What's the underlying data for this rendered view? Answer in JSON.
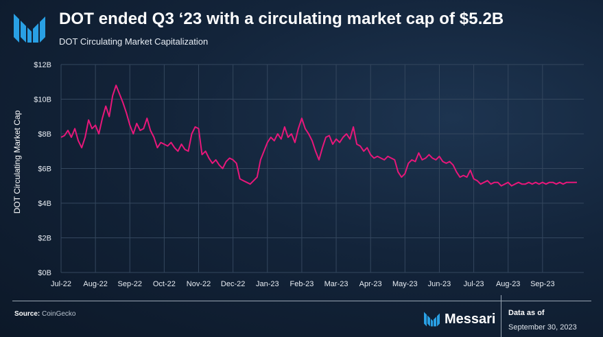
{
  "header": {
    "title": "DOT ended Q3 ‘23 with a circulating market cap of $5.2B",
    "subtitle": "DOT Circulating Market Capitalization"
  },
  "footer": {
    "source_label": "Source:",
    "source_value": "CoinGecko",
    "brand_name": "Messari",
    "data_as_of_label": "Data as of",
    "data_as_of_date": "September 30, 2023"
  },
  "colors": {
    "line": "#e8177a",
    "grid": "#34475e",
    "tick_text": "#e8edf3",
    "logo": "#29a0e4"
  },
  "chart_data": {
    "type": "line",
    "title": "DOT Circulating Market Capitalization",
    "xlabel": "",
    "ylabel": "DOT Circulating Market Cap",
    "y_tick_labels": [
      "$0B",
      "$2B",
      "$4B",
      "$6B",
      "$8B",
      "$10B",
      "$12B"
    ],
    "x_tick_labels": [
      "Jul-22",
      "Aug-22",
      "Sep-22",
      "Oct-22",
      "Nov-22",
      "Dec-22",
      "Jan-23",
      "Feb-23",
      "Mar-23",
      "Apr-23",
      "May-23",
      "Jun-23",
      "Jul-23",
      "Aug-23",
      "Sep-23"
    ],
    "ylim": [
      0,
      12
    ],
    "xlim": [
      0,
      15.2
    ],
    "grid": true,
    "series": [
      {
        "name": "DOT Circulating Market Cap ($B)",
        "x": [
          0.0,
          0.1,
          0.2,
          0.3,
          0.4,
          0.5,
          0.6,
          0.7,
          0.8,
          0.9,
          1.0,
          1.1,
          1.2,
          1.3,
          1.4,
          1.5,
          1.6,
          1.7,
          1.8,
          1.9,
          2.0,
          2.1,
          2.2,
          2.3,
          2.4,
          2.5,
          2.6,
          2.7,
          2.8,
          2.9,
          3.0,
          3.1,
          3.2,
          3.3,
          3.4,
          3.5,
          3.6,
          3.7,
          3.8,
          3.9,
          4.0,
          4.1,
          4.2,
          4.3,
          4.4,
          4.5,
          4.6,
          4.7,
          4.8,
          4.9,
          5.0,
          5.1,
          5.2,
          5.3,
          5.4,
          5.5,
          5.6,
          5.7,
          5.8,
          5.9,
          6.0,
          6.1,
          6.2,
          6.3,
          6.4,
          6.5,
          6.6,
          6.7,
          6.8,
          6.9,
          7.0,
          7.1,
          7.2,
          7.3,
          7.4,
          7.5,
          7.6,
          7.7,
          7.8,
          7.9,
          8.0,
          8.1,
          8.2,
          8.3,
          8.4,
          8.5,
          8.6,
          8.7,
          8.8,
          8.9,
          9.0,
          9.1,
          9.2,
          9.3,
          9.4,
          9.5,
          9.6,
          9.7,
          9.8,
          9.9,
          10.0,
          10.1,
          10.2,
          10.3,
          10.4,
          10.5,
          10.6,
          10.7,
          10.8,
          10.9,
          11.0,
          11.1,
          11.2,
          11.3,
          11.4,
          11.5,
          11.6,
          11.7,
          11.8,
          11.9,
          12.0,
          12.1,
          12.2,
          12.3,
          12.4,
          12.5,
          12.6,
          12.7,
          12.8,
          12.9,
          13.0,
          13.1,
          13.2,
          13.3,
          13.4,
          13.5,
          13.6,
          13.7,
          13.8,
          13.9,
          14.0,
          14.1,
          14.2,
          14.3,
          14.4,
          14.5,
          14.6,
          14.7,
          14.8,
          14.9,
          15.0
        ],
        "values": [
          7.8,
          7.9,
          8.2,
          7.8,
          8.3,
          7.6,
          7.2,
          7.8,
          8.8,
          8.3,
          8.5,
          8.0,
          8.9,
          9.6,
          9.0,
          10.2,
          10.8,
          10.3,
          9.8,
          9.2,
          8.5,
          8.0,
          8.6,
          8.2,
          8.3,
          8.9,
          8.2,
          7.8,
          7.2,
          7.5,
          7.4,
          7.3,
          7.5,
          7.2,
          7.0,
          7.4,
          7.1,
          7.0,
          8.0,
          8.4,
          8.3,
          6.8,
          7.0,
          6.6,
          6.3,
          6.5,
          6.2,
          6.0,
          6.4,
          6.6,
          6.5,
          6.3,
          5.4,
          5.3,
          5.2,
          5.1,
          5.3,
          5.5,
          6.5,
          7.0,
          7.5,
          7.8,
          7.6,
          8.0,
          7.7,
          8.4,
          7.8,
          8.0,
          7.5,
          8.3,
          8.9,
          8.3,
          8.0,
          7.6,
          7.0,
          6.5,
          7.2,
          7.8,
          7.9,
          7.4,
          7.7,
          7.5,
          7.8,
          8.0,
          7.7,
          8.4,
          7.4,
          7.3,
          7.0,
          7.2,
          6.8,
          6.6,
          6.7,
          6.6,
          6.5,
          6.7,
          6.6,
          6.5,
          5.8,
          5.5,
          5.7,
          6.3,
          6.5,
          6.4,
          6.9,
          6.5,
          6.6,
          6.8,
          6.6,
          6.5,
          6.7,
          6.4,
          6.3,
          6.4,
          6.2,
          5.8,
          5.5,
          5.6,
          5.5,
          5.9,
          5.4,
          5.3,
          5.1,
          5.2,
          5.3,
          5.1,
          5.2,
          5.2,
          5.0,
          5.1,
          5.2,
          5.0,
          5.1,
          5.2,
          5.1,
          5.1,
          5.2,
          5.1,
          5.2,
          5.1,
          5.2,
          5.1,
          5.2,
          5.2,
          5.1,
          5.2,
          5.1,
          5.2,
          5.2,
          5.2,
          5.2
        ]
      }
    ]
  }
}
